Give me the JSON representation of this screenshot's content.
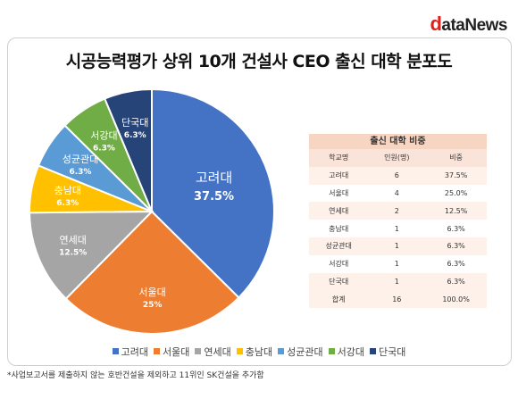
{
  "logo": {
    "first": "d",
    "rest": "ataNews"
  },
  "title": "시공능력평가 상위 10개 건설사 CEO 출신 대학 분포도",
  "chart_data": {
    "type": "pie",
    "categories": [
      "고려대",
      "서울대",
      "연세대",
      "충남대",
      "성균관대",
      "서강대",
      "단국대"
    ],
    "values": [
      37.5,
      25,
      12.5,
      6.3,
      6.3,
      6.3,
      6.3
    ],
    "labels": [
      "37.5%",
      "25%",
      "12.5%",
      "6.3%",
      "6.3%",
      "6.3%",
      "6.3%"
    ],
    "colors": [
      "#4472c4",
      "#ed7d31",
      "#a5a5a5",
      "#ffc000",
      "#5b9bd5",
      "#70ad47",
      "#264478"
    ],
    "legend_position": "bottom"
  },
  "table": {
    "title": "출신 대학 비중",
    "headers": [
      "학교명",
      "인원(명)",
      "비중"
    ],
    "rows": [
      [
        "고려대",
        "6",
        "37.5%"
      ],
      [
        "서울대",
        "4",
        "25.0%"
      ],
      [
        "연세대",
        "2",
        "12.5%"
      ],
      [
        "충남대",
        "1",
        "6.3%"
      ],
      [
        "성균관대",
        "1",
        "6.3%"
      ],
      [
        "서강대",
        "1",
        "6.3%"
      ],
      [
        "단국대",
        "1",
        "6.3%"
      ],
      [
        "합계",
        "16",
        "100.0%"
      ]
    ]
  },
  "footnote": "*사업보고서를 제출하지 않는 호반건설을 제외하고 11위인 SK건설을 추가함"
}
